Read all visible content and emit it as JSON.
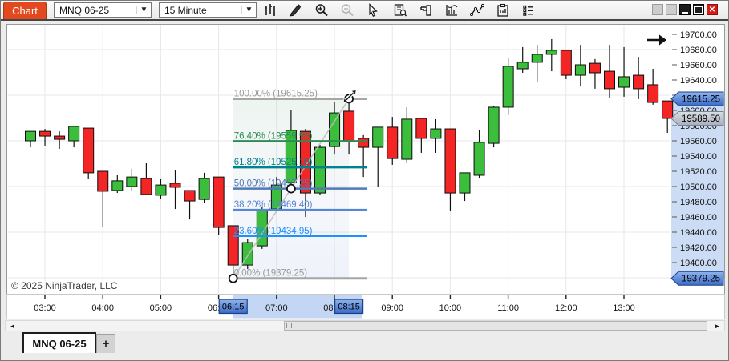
{
  "window": {
    "title_tab": "Chart"
  },
  "toolbar": {
    "instrument": "MNQ 06-25",
    "interval": "15 Minute",
    "icons": [
      "chart-style-icon",
      "pencil-icon",
      "zoom-in-icon",
      "zoom-out-icon",
      "pointer-icon",
      "data-box-icon",
      "chart-trader-icon",
      "indicators-icon",
      "drawing-tools-icon",
      "strategies-icon",
      "properties-icon"
    ],
    "window_buttons": [
      "inactive-1",
      "inactive-2",
      "minimize",
      "maximize",
      "close"
    ],
    "close_glyph": "✕"
  },
  "chart": {
    "copyright": "© 2025 NinjaTrader, LLC",
    "colors": {
      "up": "#3bbe3b",
      "down": "#f42525",
      "candle_border": "#0d0d0d",
      "grid": "#e7e7e7",
      "plot_border": "#9a9a9a",
      "badge_blue_light": "#8fb3ec",
      "badge_blue_dark": "#3d6cc8",
      "badge_blue_border": "#17418c",
      "badge_gray_light": "#dadee4",
      "badge_gray_dark": "#a9b0bd",
      "badge_gray_border": "#7d828c",
      "axis_selection": "#ccdcf5",
      "time_band": "#c3d6f4"
    },
    "price_axis": {
      "labels": [
        "19700.00",
        "19680.00",
        "19660.00",
        "19640.00",
        "19620.00",
        "19600.00",
        "19580.00",
        "19560.00",
        "19540.00",
        "19520.00",
        "19500.00",
        "19480.00",
        "19460.00",
        "19440.00",
        "19420.00",
        "19400.00"
      ],
      "badges": [
        {
          "text": "19615.25",
          "value": 19615.25,
          "style": "blue"
        },
        {
          "text": "19589.50",
          "value": 19589.5,
          "style": "gray"
        },
        {
          "text": "19379.25",
          "value": 19379.25,
          "style": "blue"
        }
      ]
    },
    "time_axis": {
      "labels": [
        "03:00",
        "04:00",
        "05:00",
        "06:00",
        "07:00",
        "08:00",
        "09:00",
        "10:00",
        "11:00",
        "12:00",
        "13:00"
      ],
      "badges": [
        {
          "text": "06:15",
          "candle_index": 14
        },
        {
          "text": "08:15",
          "candle_index": 22
        }
      ]
    },
    "fibonacci": {
      "anchor_start": {
        "time": "06:15",
        "candle_index": 14,
        "price": 19379.25
      },
      "anchor_end": {
        "time": "08:15",
        "candle_index": 22,
        "price": 19615.25
      },
      "levels": [
        {
          "label": "100.00% (19615.25)",
          "value": 19615.25,
          "color": "#a6a6a6",
          "text_color": "#9b9b9b",
          "width": 3
        },
        {
          "label": "76.40% (19559.55)",
          "value": 19559.55,
          "color": "#2e8b57",
          "text_color": "#2e8b57",
          "width": 2.5
        },
        {
          "label": "61.80% (19525.10)",
          "value": 19525.1,
          "color": "#00838f",
          "text_color": "#00838f",
          "width": 2.5
        },
        {
          "label": "50.00% (19497.25)",
          "value": 19497.25,
          "color": "#4f7ab5",
          "text_color": "#4f7ab5",
          "width": 2.5
        },
        {
          "label": "38.20% (19469.40)",
          "value": 19469.4,
          "color": "#5585d9",
          "text_color": "#5585d9",
          "width": 2.5
        },
        {
          "label": "23.60% (19434.95)",
          "value": 19434.95,
          "color": "#1e90ff",
          "text_color": "#1e90ff",
          "width": 2.5
        },
        {
          "label": "0.00% (19379.25)",
          "value": 19379.25,
          "color": "#a6a6a6",
          "text_color": "#9b9b9b",
          "width": 3
        }
      ]
    },
    "chart_data": {
      "type": "candlestick",
      "instrument": "MNQ 06-25",
      "interval": "15 Minute",
      "start_time": "02:45",
      "step_minutes": 15,
      "ylim": [
        19370,
        19710
      ],
      "candles_ohlc": [
        [
          19560.0,
          19572.5,
          19551.5,
          19572.5
        ],
        [
          19572.5,
          19575.75,
          19553.75,
          19566.25
        ],
        [
          19566.25,
          19572.5,
          19549.5,
          19562.0
        ],
        [
          19560.0,
          19579.0,
          19551.5,
          19579.0
        ],
        [
          19576.75,
          19576.75,
          19509.5,
          19518.0
        ],
        [
          19520.0,
          19520.0,
          19446.25,
          19493.75
        ],
        [
          19494.75,
          19514.75,
          19491.5,
          19507.5
        ],
        [
          19500.0,
          19523.25,
          19494.75,
          19512.5
        ],
        [
          19510.5,
          19530.5,
          19488.5,
          19489.5
        ],
        [
          19488.5,
          19509.5,
          19484.25,
          19502.0
        ],
        [
          19504.25,
          19521.0,
          19470.5,
          19499.0
        ],
        [
          19494.75,
          19494.75,
          19456.75,
          19481.0
        ],
        [
          19483.0,
          19518.0,
          19478.0,
          19510.5
        ],
        [
          19512.5,
          19512.5,
          19436.75,
          19446.25
        ],
        [
          19448.5,
          19448.5,
          19379.25,
          19396.75
        ],
        [
          19396.75,
          19431.5,
          19391.5,
          19426.25
        ],
        [
          19422.0,
          19473.75,
          19418.0,
          19468.5
        ],
        [
          19470.5,
          19512.5,
          19467.5,
          19502.0
        ],
        [
          19505.25,
          19600.0,
          19500.0,
          19573.75
        ],
        [
          19572.5,
          19575.75,
          19460.0,
          19491.5
        ],
        [
          19491.5,
          19554.75,
          19488.5,
          19551.5
        ],
        [
          19552.5,
          19610.5,
          19542.0,
          19596.75
        ],
        [
          19599.0,
          19615.25,
          19542.0,
          19559.0
        ],
        [
          19563.25,
          19567.5,
          19512.5,
          19551.5
        ],
        [
          19551.5,
          19578.0,
          19499.0,
          19578.0
        ],
        [
          19578.0,
          19591.5,
          19528.5,
          19536.75
        ],
        [
          19535.75,
          19604.25,
          19530.5,
          19588.5
        ],
        [
          19589.5,
          19589.5,
          19544.25,
          19563.25
        ],
        [
          19563.25,
          19588.5,
          19544.25,
          19575.75
        ],
        [
          19575.75,
          19575.75,
          19468.5,
          19491.5
        ],
        [
          19491.5,
          19518.0,
          19481.0,
          19518.0
        ],
        [
          19514.75,
          19573.75,
          19510.5,
          19558.0
        ],
        [
          19556.75,
          19606.0,
          19551.5,
          19604.25
        ],
        [
          19604.25,
          19668.5,
          19593.75,
          19658.0
        ],
        [
          19654.75,
          19683.25,
          19649.5,
          19663.25
        ],
        [
          19663.25,
          19686.25,
          19636.75,
          19673.75
        ],
        [
          19673.75,
          19693.75,
          19651.5,
          19679.0
        ],
        [
          19679.0,
          19679.0,
          19641.0,
          19646.25
        ],
        [
          19646.25,
          19686.25,
          19631.5,
          19660.0
        ],
        [
          19662.0,
          19667.5,
          19628.5,
          19649.5
        ],
        [
          19651.5,
          19686.25,
          19615.75,
          19628.5
        ],
        [
          19630.5,
          19683.25,
          19618.0,
          19644.25
        ],
        [
          19646.25,
          19670.5,
          19614.75,
          19628.5
        ],
        [
          19633.75,
          19654.75,
          19607.5,
          19610.5
        ],
        [
          19612.5,
          19612.5,
          19570.5,
          19589.5
        ]
      ]
    }
  },
  "tabs": {
    "active": "MNQ 06-25",
    "add": "+"
  },
  "scrollbar": {
    "left_arrow": "◄",
    "right_arrow": "►"
  }
}
